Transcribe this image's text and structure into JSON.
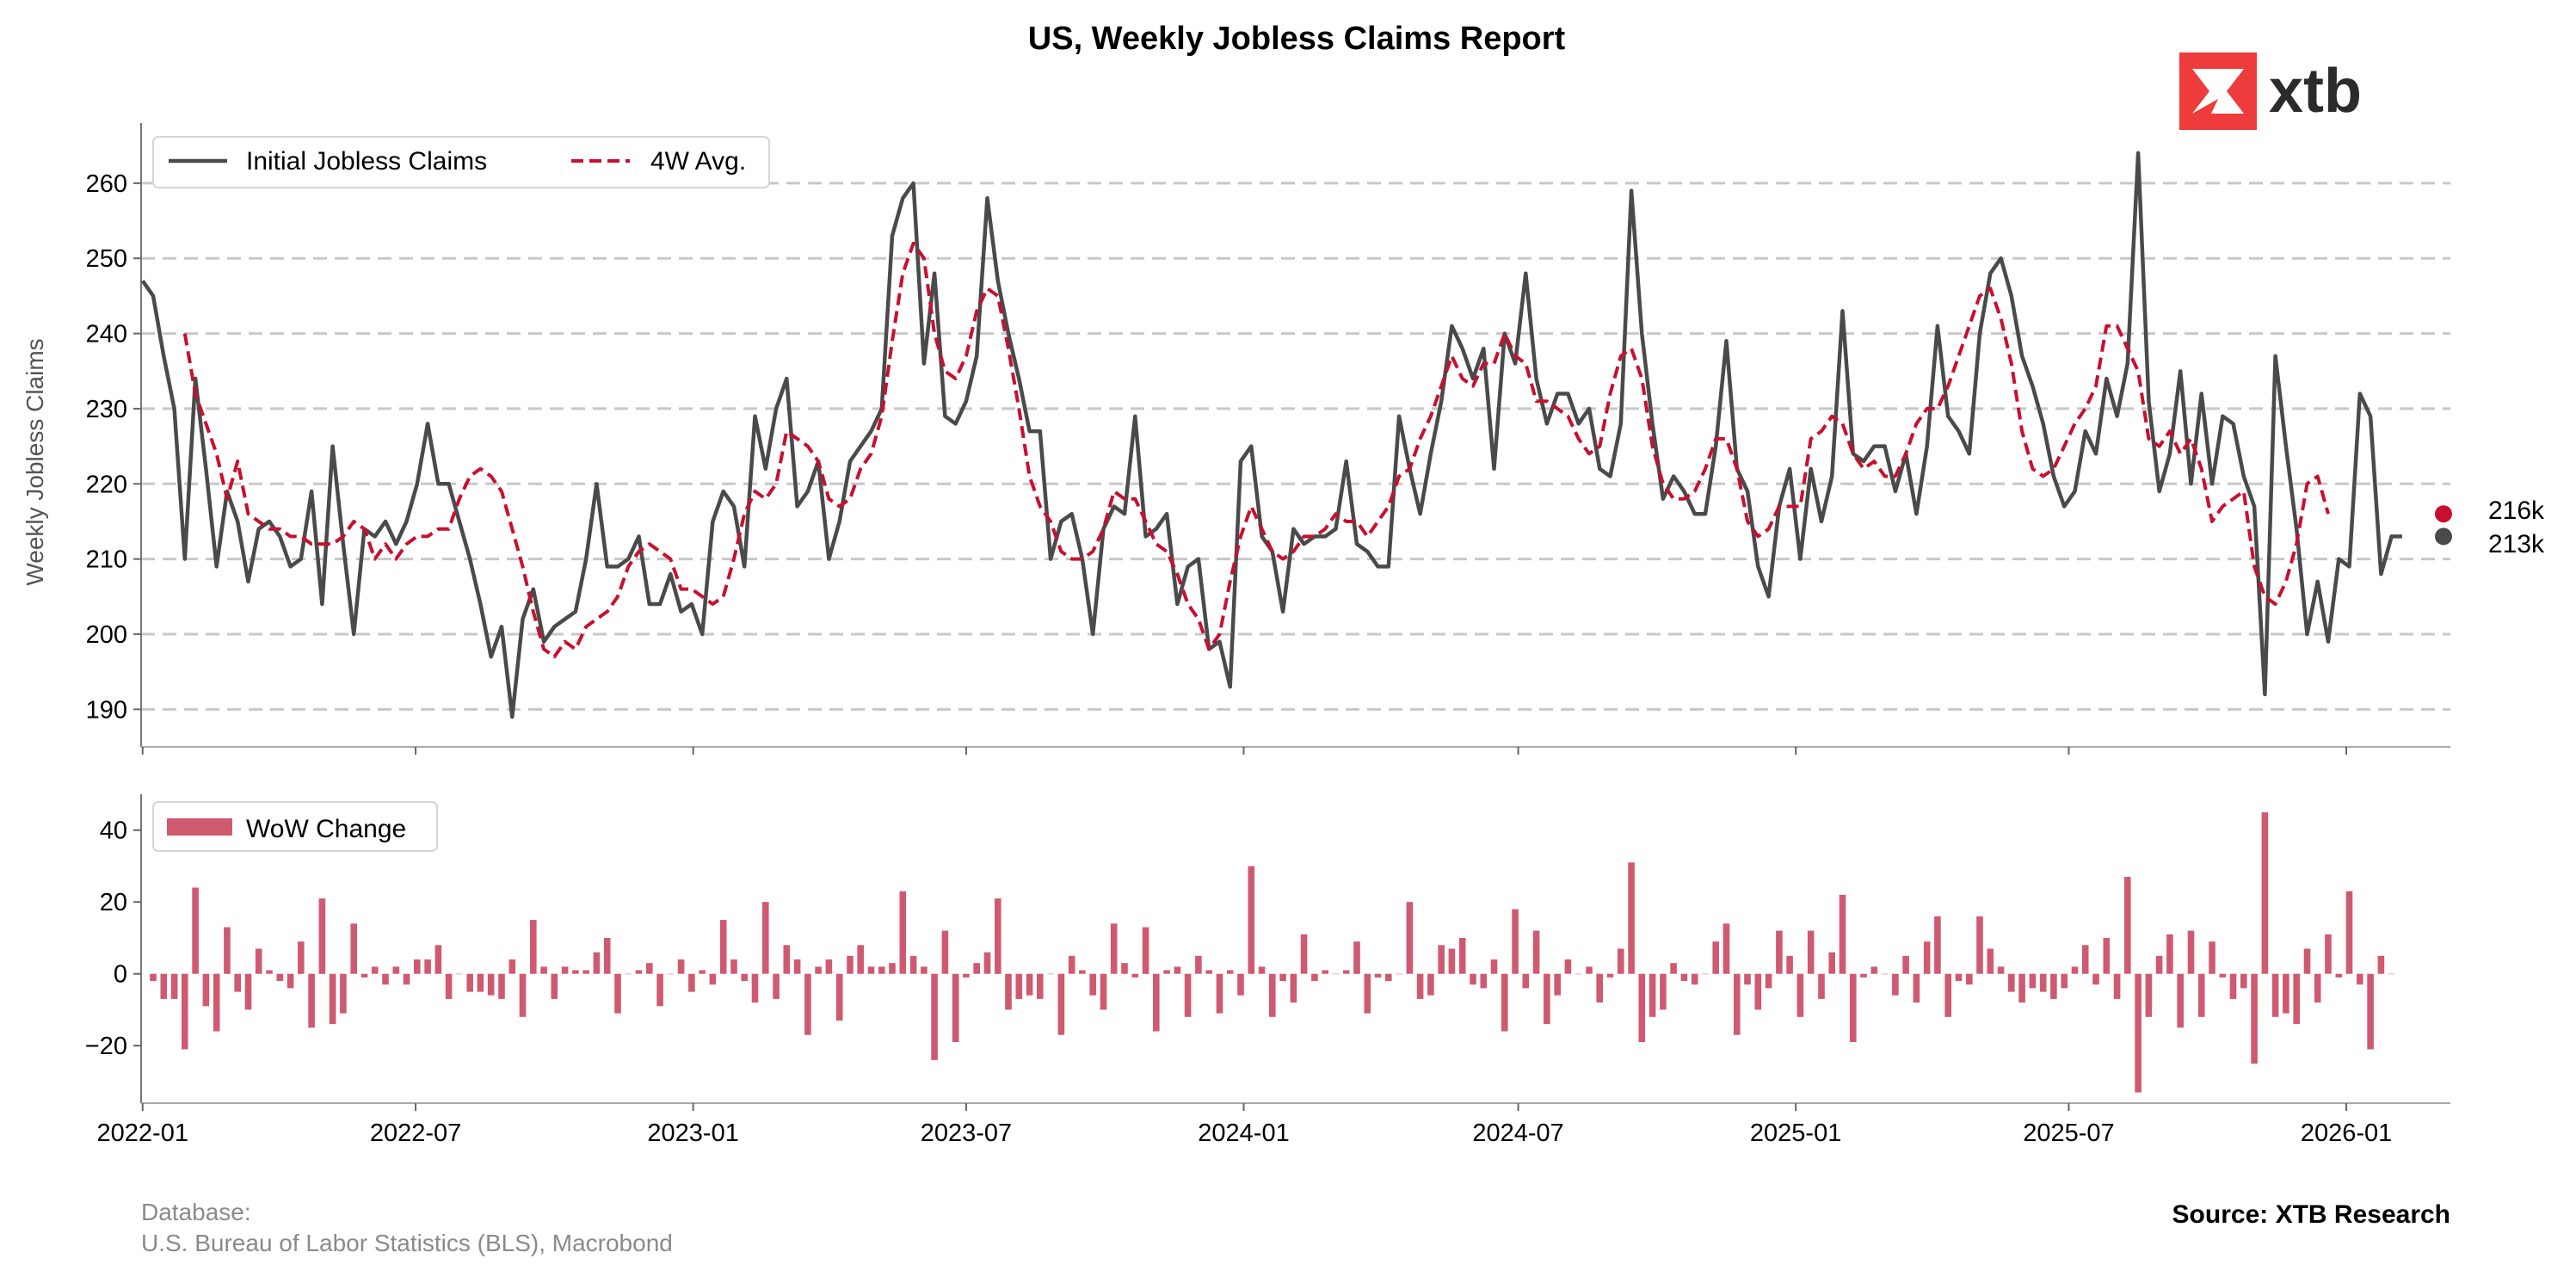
{
  "colors": {
    "claims": "#4a4a4a",
    "avg": "#c8102e",
    "wow": "#cf5a70",
    "grid": "#c8c8c8",
    "logo": "#ee3b3b"
  },
  "logo": {
    "text": "xtb",
    "icon": "xtb-x-icon"
  },
  "footer": {
    "database_label": "Database:",
    "database_value": "U.S. Bureau of Labor Statistics (BLS), Macrobond",
    "source": "Source: XTB Research"
  },
  "end_labels": {
    "avg": "216k",
    "claims": "213k"
  },
  "chart_data": [
    {
      "type": "line",
      "title": "US, Weekly Jobless Claims Report",
      "ylabel": "Weekly Jobless Claims",
      "xlabel": "",
      "xlim": [
        "2021-12-31",
        "2026-03-11"
      ],
      "ylim": [
        185,
        268
      ],
      "grid": "horizontal dashed",
      "legend_position": "top-left",
      "x_ticks": [
        "2022-01",
        "2022-07",
        "2023-01",
        "2023-07",
        "2024-01",
        "2024-07",
        "2025-01",
        "2025-07",
        "2026-01"
      ],
      "y_ticks": [
        190,
        200,
        210,
        220,
        230,
        240,
        250,
        260
      ],
      "x_start": "2022-01-01",
      "x_step_days": 7,
      "series": [
        {
          "name": "Initial Jobless Claims",
          "style": "solid",
          "values": [
            247,
            245,
            237,
            230,
            210,
            234,
            222,
            209,
            219,
            215,
            207,
            214,
            215,
            213,
            209,
            210,
            219,
            204,
            225,
            212,
            200,
            214,
            213,
            215,
            212,
            215,
            220,
            228,
            220,
            220,
            215,
            210,
            204,
            197,
            201,
            189,
            202,
            206,
            199,
            201,
            202,
            203,
            210,
            220,
            209,
            209,
            210,
            213,
            204,
            204,
            208,
            203,
            204,
            200,
            215,
            219,
            217,
            209,
            229,
            222,
            230,
            234,
            217,
            219,
            223,
            210,
            215,
            223,
            225,
            227,
            230,
            253,
            258,
            260,
            236,
            248,
            229,
            228,
            231,
            237,
            258,
            247,
            240,
            234,
            227,
            227,
            210,
            215,
            216,
            210,
            200,
            214,
            217,
            216,
            229,
            213,
            214,
            216,
            204,
            209,
            210,
            198,
            199,
            193,
            223,
            225,
            213,
            211,
            203,
            214,
            212,
            213,
            213,
            214,
            223,
            212,
            211,
            209,
            209,
            229,
            222,
            216,
            224,
            231,
            241,
            238,
            234,
            238,
            222,
            240,
            236,
            248,
            234,
            228,
            232,
            232,
            228,
            230,
            222,
            221,
            228,
            259,
            240,
            228,
            218,
            221,
            219,
            216,
            216,
            225,
            239,
            222,
            219,
            209,
            205,
            217,
            222,
            210,
            222,
            215,
            221,
            243,
            224,
            223,
            225,
            225,
            219,
            224,
            216,
            225,
            241,
            229,
            227,
            224,
            240,
            248,
            250,
            245,
            237,
            233,
            228,
            221,
            217,
            219,
            227,
            224,
            234,
            229,
            236,
            264,
            231,
            219,
            224,
            235,
            220,
            232,
            220,
            229,
            228,
            221,
            217,
            192,
            237,
            225,
            214,
            200,
            207,
            199,
            210,
            209,
            232,
            229,
            208,
            213,
            213
          ]
        },
        {
          "name": "4W Avg.",
          "style": "dashed",
          "start_index": 4,
          "values": [
            240,
            232,
            228,
            224,
            218,
            223,
            216,
            215,
            214,
            214,
            213,
            213,
            212,
            212,
            212,
            213,
            215,
            214,
            210,
            212,
            210,
            212,
            213,
            213,
            214,
            214,
            218,
            221,
            222,
            221,
            219,
            214,
            209,
            203,
            198,
            197,
            199,
            198,
            201,
            202,
            203,
            205,
            209,
            211,
            212,
            211,
            210,
            206,
            206,
            205,
            204,
            205,
            210,
            216,
            219,
            218,
            220,
            227,
            226,
            225,
            223,
            218,
            217,
            218,
            222,
            224,
            229,
            239,
            248,
            252,
            250,
            240,
            235,
            234,
            237,
            243,
            246,
            245,
            238,
            230,
            221,
            217,
            215,
            211,
            210,
            210,
            211,
            214,
            219,
            218,
            218,
            215,
            212,
            211,
            208,
            204,
            202,
            198,
            200,
            207,
            213,
            217,
            214,
            211,
            210,
            211,
            213,
            213,
            214,
            216,
            215,
            215,
            213,
            215,
            217,
            221,
            222,
            226,
            229,
            233,
            237,
            234,
            233,
            236,
            236,
            240,
            237,
            236,
            231,
            231,
            230,
            229,
            226,
            224,
            225,
            232,
            237,
            238,
            234,
            225,
            220,
            218,
            218,
            219,
            222,
            226,
            226,
            222,
            215,
            213,
            214,
            217,
            217,
            217,
            226,
            227,
            229,
            228,
            224,
            222,
            223,
            221,
            221,
            224,
            228,
            230,
            230,
            233,
            237,
            241,
            245,
            246,
            242,
            236,
            227,
            222,
            221,
            222,
            225,
            228,
            230,
            233,
            241,
            241,
            238,
            235,
            226,
            225,
            227,
            224,
            226,
            222,
            215,
            217,
            218,
            219,
            209,
            205,
            204,
            207,
            212,
            220,
            221,
            216
          ]
        }
      ]
    },
    {
      "type": "bar",
      "title": "",
      "ylabel": "",
      "xlabel": "",
      "ylim": [
        -36,
        50
      ],
      "y_ticks": [
        -20,
        0,
        20,
        40
      ],
      "legend_position": "top-left",
      "series": [
        {
          "name": "WoW Change",
          "derived_from": "Initial Jobless Claims",
          "values": [
            -2,
            -7,
            -7,
            -21,
            24,
            -9,
            -16,
            13,
            -5,
            -10,
            7,
            1,
            -2,
            -4,
            9,
            -15,
            21,
            -14,
            -11,
            14,
            -1,
            2,
            -3,
            2,
            -3,
            4,
            4,
            8,
            -7,
            0,
            -5,
            -5,
            -6,
            -7,
            4,
            -12,
            15,
            2,
            -7,
            2,
            1,
            1,
            6,
            10,
            -11,
            0,
            1,
            3,
            -9,
            0,
            4,
            -5,
            1,
            -3,
            15,
            4,
            -2,
            -8,
            20,
            -7,
            8,
            4,
            -17,
            2,
            4,
            -13,
            5,
            8,
            2,
            2,
            3,
            23,
            5,
            2,
            -24,
            12,
            -19,
            -1,
            3,
            6,
            21,
            -10,
            -7,
            -6,
            -7,
            0,
            -17,
            5,
            1,
            -6,
            -10,
            14,
            3,
            -1,
            13,
            -16,
            1,
            2,
            -12,
            5,
            1,
            -11,
            1,
            -6,
            30,
            2,
            -12,
            -2,
            -8,
            11,
            -2,
            1,
            0,
            1,
            9,
            -11,
            -1,
            -2,
            0,
            20,
            -7,
            -6,
            8,
            7,
            10,
            -3,
            -4,
            4,
            -16,
            18,
            -4,
            12,
            -14,
            -6,
            4,
            0,
            2,
            -8,
            -1,
            7,
            31,
            -19,
            -12,
            -10,
            3,
            -2,
            -3,
            0,
            9,
            14,
            -17,
            -3,
            -10,
            -4,
            12,
            5,
            -12,
            12,
            -7,
            6,
            22,
            -19,
            -1,
            2,
            0,
            -6,
            5,
            -8,
            9,
            16,
            -12,
            -2,
            -3,
            16,
            7,
            2,
            -5,
            -8,
            -4,
            -5,
            -7,
            -4,
            2,
            8,
            -3,
            10,
            -7,
            27,
            -33,
            -12,
            5,
            11,
            -15,
            12,
            -12,
            9,
            -1,
            -7,
            -4,
            -25,
            45,
            -12,
            -11,
            -14,
            7,
            -8,
            11,
            -1,
            23,
            -3,
            -21,
            5,
            0
          ]
        }
      ]
    }
  ]
}
